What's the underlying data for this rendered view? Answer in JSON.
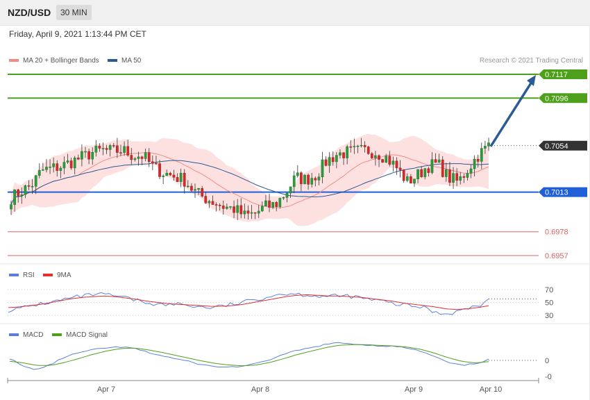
{
  "header": {
    "symbol": "NZD/USD",
    "timeframe": "30 MIN",
    "datetime": "Friday, April 9, 2021 1:13:44 PM CET"
  },
  "main_panel": {
    "legend": [
      {
        "label": "MA 20 + Bollinger Bands",
        "color": "#f28b82"
      },
      {
        "label": "MA 50",
        "color": "#2c5a94"
      }
    ],
    "copyright": "Research © 2021 Trading Central"
  },
  "rsi_panel": {
    "legend": [
      {
        "label": "RSI",
        "color": "#5b7fd8"
      },
      {
        "label": "9MA",
        "color": "#e03030"
      }
    ]
  },
  "macd_panel": {
    "legend": [
      {
        "label": "MACD",
        "color": "#5b7fd8"
      },
      {
        "label": "MACD Signal",
        "color": "#4ea01a"
      }
    ]
  },
  "chart_data": [
    {
      "type": "candlestick",
      "symbol": "NZD/USD",
      "timeframe": "30 MIN",
      "x_labels": [
        "Apr 7",
        "Apr 8",
        "Apr 9",
        "Apr 10"
      ],
      "ylim": [
        0.695,
        0.7125
      ],
      "bars": 136,
      "price_path": [
        0.7008,
        0.7014,
        0.7019,
        0.7032,
        0.7034,
        0.7036,
        0.704,
        0.7044,
        0.7048,
        0.705,
        0.7049,
        0.705,
        0.7045,
        0.7045,
        0.7035,
        0.703,
        0.7027,
        0.7024,
        0.7014,
        0.7008,
        0.7004,
        0.7,
        0.6998,
        0.6992,
        0.6994,
        0.7,
        0.7002,
        0.7012,
        0.7026,
        0.7024,
        0.7028,
        0.704,
        0.7046,
        0.7048,
        0.7049,
        0.705,
        0.7048,
        0.7043,
        0.7034,
        0.7022,
        0.7028,
        0.7036,
        0.7038,
        0.7026,
        0.7022,
        0.7034,
        0.7046,
        0.7054
      ],
      "levels": [
        {
          "value": "0.7117",
          "color": "#4ea01a"
        },
        {
          "value": "0.7096",
          "color": "#4ea01a"
        },
        {
          "value": "0.7054",
          "color": "#333333"
        },
        {
          "value": "0.7013",
          "color": "#1f5fd8"
        },
        {
          "value": "0.6978",
          "color": "#e06060"
        },
        {
          "value": "0.6957",
          "color": "#e06060"
        }
      ],
      "last_price": "0.7054",
      "projection": {
        "from": 0.7054,
        "to": 0.7117
      },
      "indicators": [
        "MA 20 + Bollinger Bands",
        "MA 50"
      ]
    },
    {
      "type": "line",
      "name": "RSI",
      "ticks": [
        "70",
        "50",
        "30"
      ],
      "ylim": [
        20,
        80
      ],
      "series": [
        {
          "name": "RSI",
          "values": [
            38,
            40,
            44,
            48,
            50,
            54,
            57,
            60,
            62,
            62,
            60,
            57,
            53,
            50,
            47,
            46,
            48,
            45,
            43,
            42,
            44,
            47,
            50,
            54,
            58,
            62,
            64,
            63,
            62,
            60,
            59,
            60,
            60,
            57,
            54,
            52,
            48,
            46,
            44,
            42,
            35,
            32,
            36,
            40,
            45,
            52
          ]
        },
        {
          "name": "9MA",
          "values": [
            42,
            43,
            45,
            47,
            50,
            53,
            56,
            58,
            59,
            60,
            59,
            57,
            55,
            52,
            50,
            48,
            47,
            46,
            45,
            44,
            44,
            45,
            47,
            50,
            53,
            56,
            59,
            61,
            62,
            61,
            60,
            60,
            59,
            58,
            56,
            54,
            52,
            49,
            47,
            45,
            43,
            40,
            39,
            40,
            42,
            45
          ]
        }
      ]
    },
    {
      "type": "line",
      "name": "MACD",
      "ticks": [
        "0",
        "-0"
      ],
      "series": [
        {
          "name": "MACD",
          "values": [
            5,
            -15,
            -22,
            -10,
            8,
            18,
            25,
            30,
            32,
            30,
            20,
            12,
            5,
            -2,
            -10,
            -15,
            -16,
            -14,
            -8,
            2,
            14,
            24,
            30,
            38,
            42,
            40,
            37,
            35,
            34,
            30,
            22,
            10,
            -5,
            -12,
            -8,
            2
          ]
        },
        {
          "name": "MACD Signal",
          "values": [
            -2,
            -6,
            -12,
            -12,
            -5,
            4,
            14,
            22,
            28,
            30,
            26,
            20,
            13,
            6,
            -1,
            -7,
            -11,
            -13,
            -11,
            -5,
            4,
            14,
            22,
            30,
            36,
            38,
            38,
            36,
            35,
            32,
            27,
            18,
            7,
            -2,
            -6,
            -3
          ]
        }
      ]
    }
  ]
}
